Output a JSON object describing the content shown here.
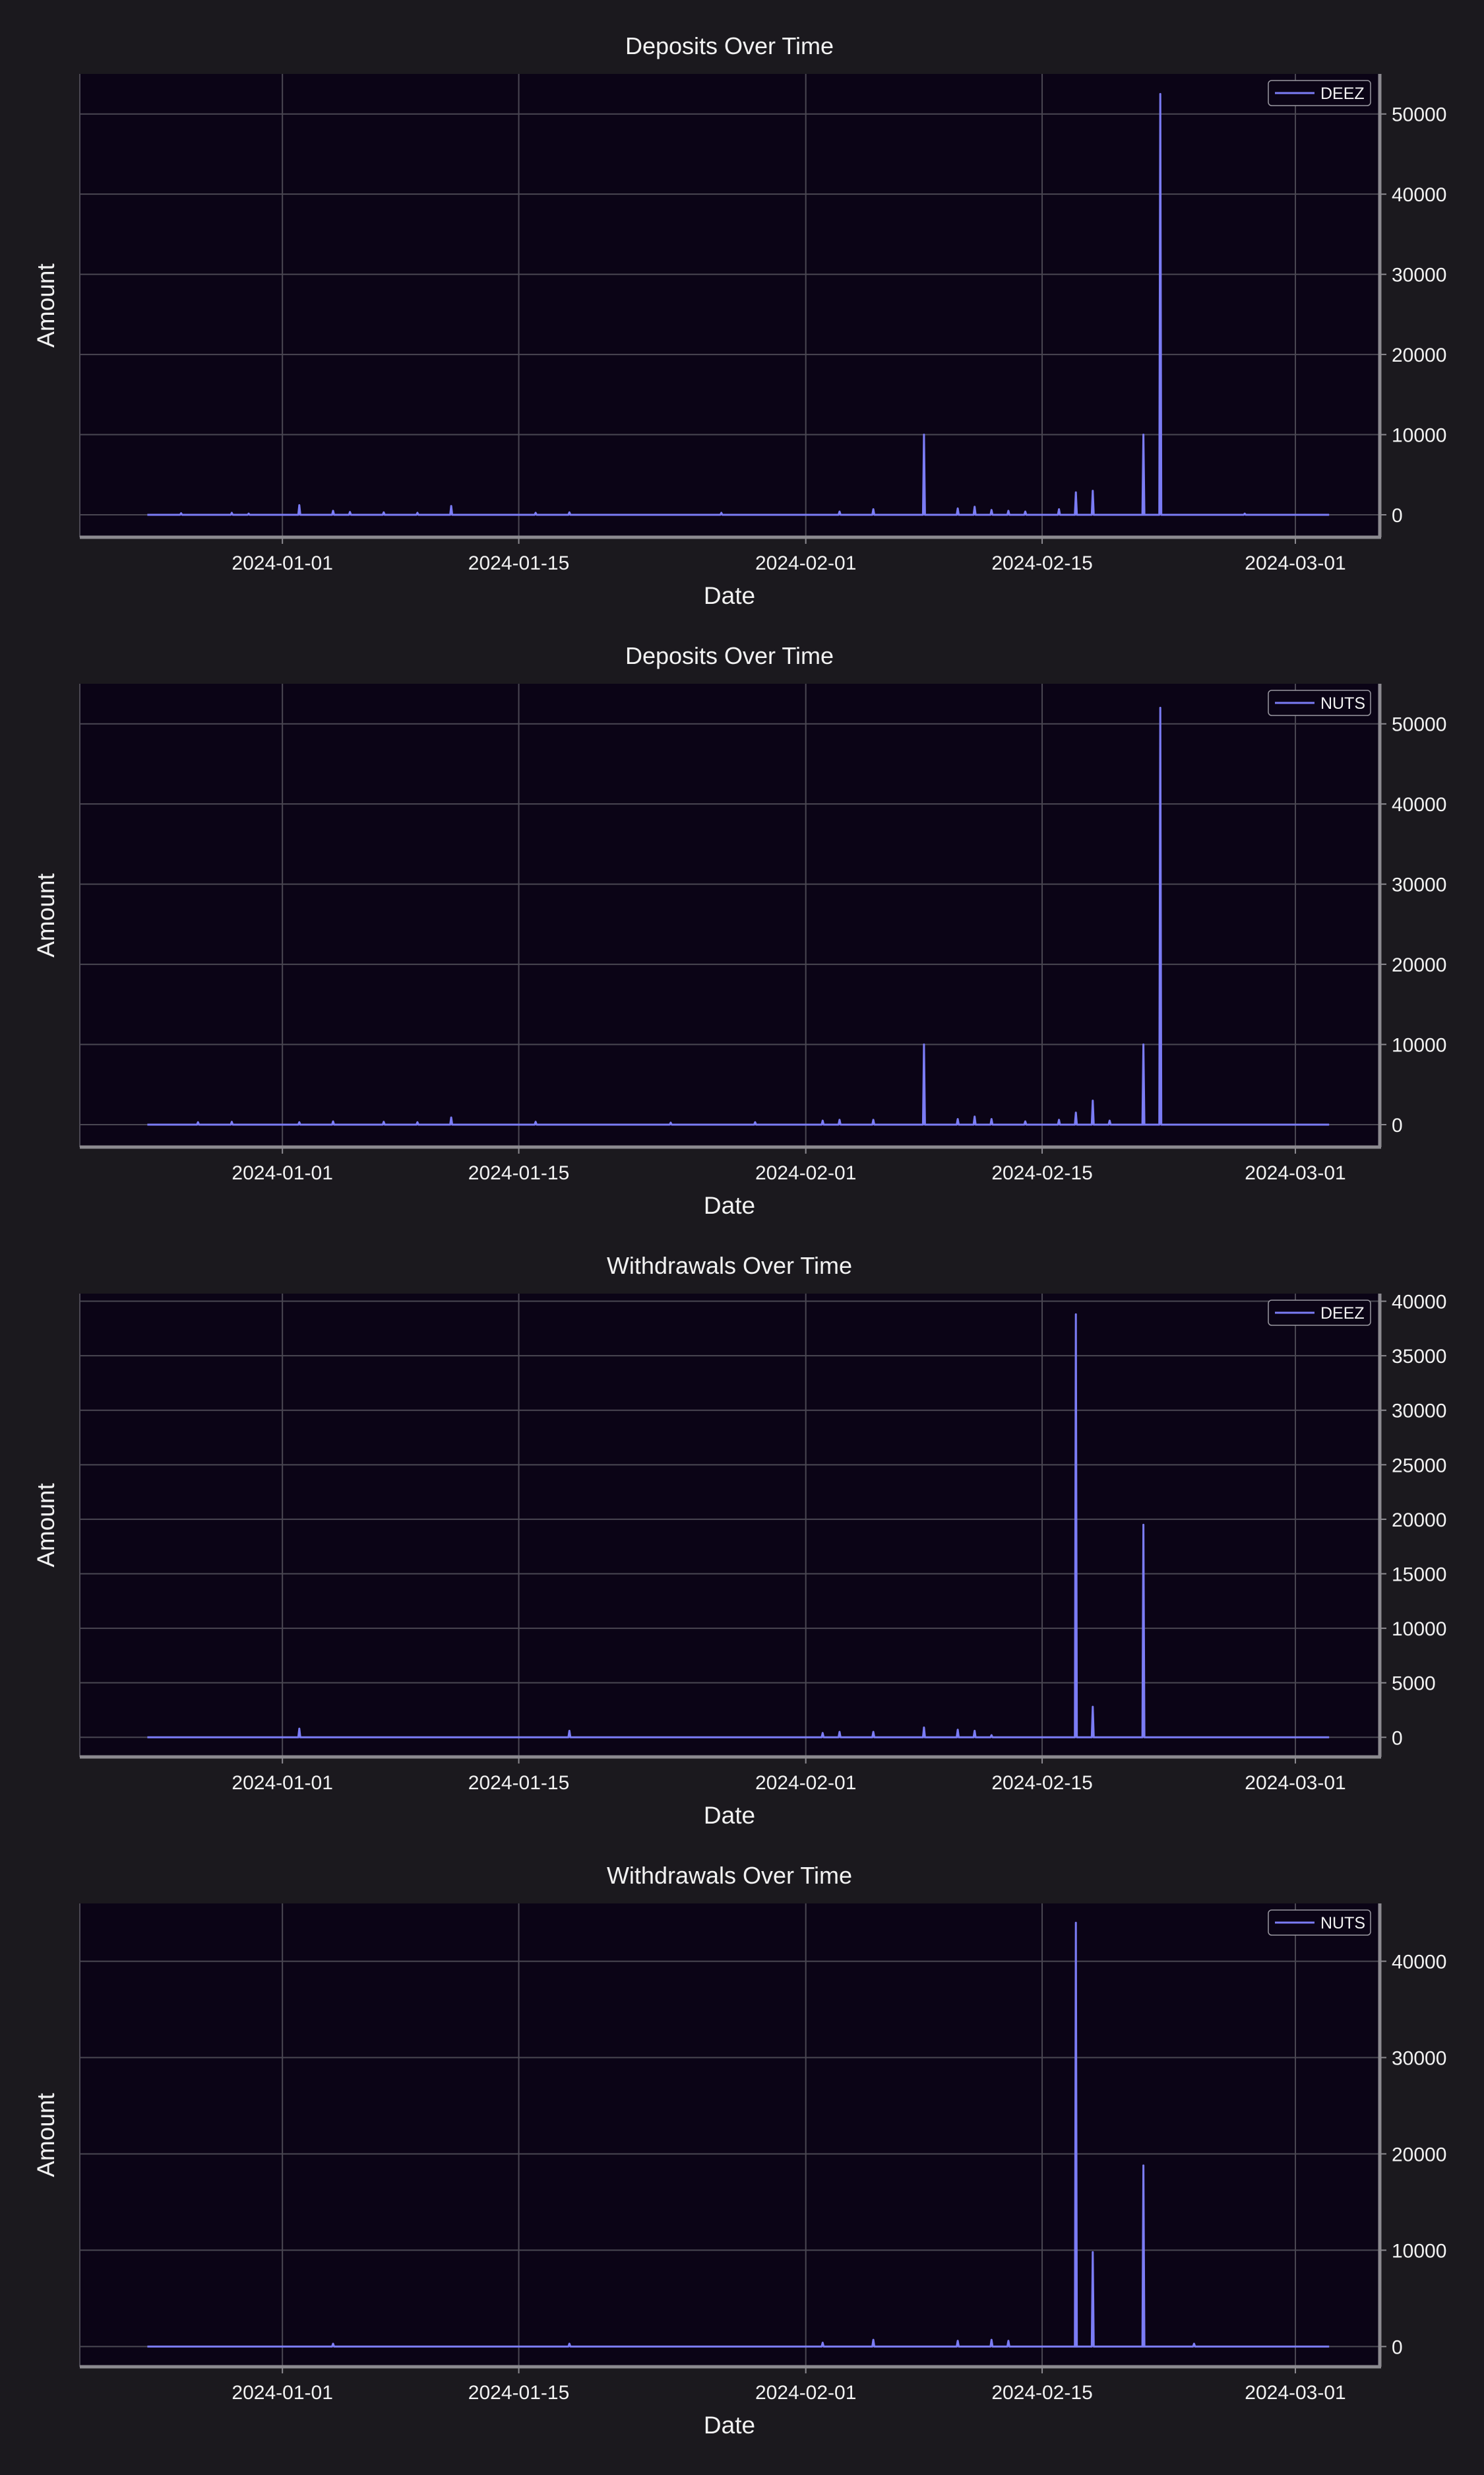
{
  "colors": {
    "figure_background": "#1b191e",
    "plot_background": "#0b0416",
    "grid": "#4a4752",
    "spine": "#8c8a90",
    "series": "#7b7cf5",
    "text": "#f2f2f2"
  },
  "chart_data": [
    {
      "type": "line",
      "title": "Deposits Over Time",
      "xlabel": "Date",
      "ylabel": "Amount",
      "x_ticks": [
        "2024-01-01",
        "2024-01-15",
        "2024-02-01",
        "2024-02-15",
        "2024-03-01"
      ],
      "y_ticks": [
        0,
        10000,
        20000,
        30000,
        40000,
        50000
      ],
      "xlim": [
        "2023-12-20",
        "2024-03-06"
      ],
      "ylim": [
        -2800,
        55000
      ],
      "y_axis_side": "right",
      "grid": true,
      "legend": "top-right",
      "series": [
        {
          "name": "DEEZ",
          "points": [
            [
              "2023-12-24",
              0
            ],
            [
              "2023-12-26",
              200
            ],
            [
              "2023-12-29",
              250
            ],
            [
              "2023-12-30",
              150
            ],
            [
              "2024-01-02",
              1200
            ],
            [
              "2024-01-04",
              500
            ],
            [
              "2024-01-05",
              350
            ],
            [
              "2024-01-07",
              300
            ],
            [
              "2024-01-09",
              250
            ],
            [
              "2024-01-11",
              1100
            ],
            [
              "2024-01-16",
              250
            ],
            [
              "2024-01-18",
              300
            ],
            [
              "2024-01-27",
              250
            ],
            [
              "2024-02-03",
              400
            ],
            [
              "2024-02-05",
              700
            ],
            [
              "2024-02-08",
              10000
            ],
            [
              "2024-02-10",
              800
            ],
            [
              "2024-02-11",
              1000
            ],
            [
              "2024-02-12",
              600
            ],
            [
              "2024-02-13",
              500
            ],
            [
              "2024-02-14",
              400
            ],
            [
              "2024-02-16",
              700
            ],
            [
              "2024-02-17",
              2800
            ],
            [
              "2024-02-18",
              3000
            ],
            [
              "2024-02-21",
              10000
            ],
            [
              "2024-02-21",
              700
            ],
            [
              "2024-02-22",
              52500
            ],
            [
              "2024-02-27",
              150
            ],
            [
              "2024-03-03",
              0
            ]
          ]
        }
      ]
    },
    {
      "type": "line",
      "title": "Deposits Over Time",
      "xlabel": "Date",
      "ylabel": "Amount",
      "x_ticks": [
        "2024-01-01",
        "2024-01-15",
        "2024-02-01",
        "2024-02-15",
        "2024-03-01"
      ],
      "y_ticks": [
        0,
        10000,
        20000,
        30000,
        40000,
        50000
      ],
      "xlim": [
        "2023-12-20",
        "2024-03-06"
      ],
      "ylim": [
        -2800,
        55000
      ],
      "y_axis_side": "right",
      "grid": true,
      "legend": "top-right",
      "series": [
        {
          "name": "NUTS",
          "points": [
            [
              "2023-12-24",
              0
            ],
            [
              "2023-12-27",
              300
            ],
            [
              "2023-12-29",
              350
            ],
            [
              "2024-01-02",
              300
            ],
            [
              "2024-01-04",
              400
            ],
            [
              "2024-01-07",
              350
            ],
            [
              "2024-01-09",
              300
            ],
            [
              "2024-01-11",
              900
            ],
            [
              "2024-01-16",
              350
            ],
            [
              "2024-01-24",
              250
            ],
            [
              "2024-01-29",
              300
            ],
            [
              "2024-02-02",
              500
            ],
            [
              "2024-02-03",
              600
            ],
            [
              "2024-02-05",
              600
            ],
            [
              "2024-02-08",
              10000
            ],
            [
              "2024-02-10",
              700
            ],
            [
              "2024-02-11",
              1000
            ],
            [
              "2024-02-12",
              700
            ],
            [
              "2024-02-14",
              400
            ],
            [
              "2024-02-16",
              600
            ],
            [
              "2024-02-17",
              1500
            ],
            [
              "2024-02-18",
              3000
            ],
            [
              "2024-02-19",
              500
            ],
            [
              "2024-02-21",
              10000
            ],
            [
              "2024-02-21",
              1000
            ],
            [
              "2024-02-22",
              52000
            ],
            [
              "2024-03-03",
              0
            ]
          ]
        }
      ]
    },
    {
      "type": "line",
      "title": "Withdrawals Over Time",
      "xlabel": "Date",
      "ylabel": "Amount",
      "x_ticks": [
        "2024-01-01",
        "2024-01-15",
        "2024-02-01",
        "2024-02-15",
        "2024-03-01"
      ],
      "y_ticks": [
        0,
        5000,
        10000,
        15000,
        20000,
        25000,
        30000,
        35000,
        40000
      ],
      "xlim": [
        "2023-12-20",
        "2024-03-06"
      ],
      "ylim": [
        -1800,
        40700
      ],
      "y_axis_side": "right",
      "grid": true,
      "legend": "top-right",
      "series": [
        {
          "name": "DEEZ",
          "points": [
            [
              "2023-12-24",
              0
            ],
            [
              "2024-01-02",
              800
            ],
            [
              "2024-01-18",
              600
            ],
            [
              "2024-02-02",
              400
            ],
            [
              "2024-02-03",
              500
            ],
            [
              "2024-02-05",
              500
            ],
            [
              "2024-02-08",
              900
            ],
            [
              "2024-02-10",
              700
            ],
            [
              "2024-02-11",
              600
            ],
            [
              "2024-02-12",
              200
            ],
            [
              "2024-02-17",
              38800
            ],
            [
              "2024-02-18",
              2800
            ],
            [
              "2024-02-21",
              19500
            ],
            [
              "2024-03-03",
              0
            ]
          ]
        }
      ]
    },
    {
      "type": "line",
      "title": "Withdrawals Over Time",
      "xlabel": "Date",
      "ylabel": "Amount",
      "x_ticks": [
        "2024-01-01",
        "2024-01-15",
        "2024-02-01",
        "2024-02-15",
        "2024-03-01"
      ],
      "y_ticks": [
        0,
        10000,
        20000,
        30000,
        40000
      ],
      "xlim": [
        "2023-12-20",
        "2024-03-06"
      ],
      "ylim": [
        -2100,
        46000
      ],
      "y_axis_side": "right",
      "grid": true,
      "legend": "top-right",
      "series": [
        {
          "name": "NUTS",
          "points": [
            [
              "2023-12-24",
              0
            ],
            [
              "2024-01-04",
              300
            ],
            [
              "2024-01-18",
              300
            ],
            [
              "2024-02-02",
              400
            ],
            [
              "2024-02-05",
              700
            ],
            [
              "2024-02-10",
              600
            ],
            [
              "2024-02-12",
              700
            ],
            [
              "2024-02-13",
              600
            ],
            [
              "2024-02-17",
              3000
            ],
            [
              "2024-02-17",
              44000
            ],
            [
              "2024-02-18",
              9800
            ],
            [
              "2024-02-21",
              18800
            ],
            [
              "2024-02-21",
              1000
            ],
            [
              "2024-02-24",
              300
            ],
            [
              "2024-03-03",
              0
            ]
          ]
        }
      ]
    }
  ]
}
